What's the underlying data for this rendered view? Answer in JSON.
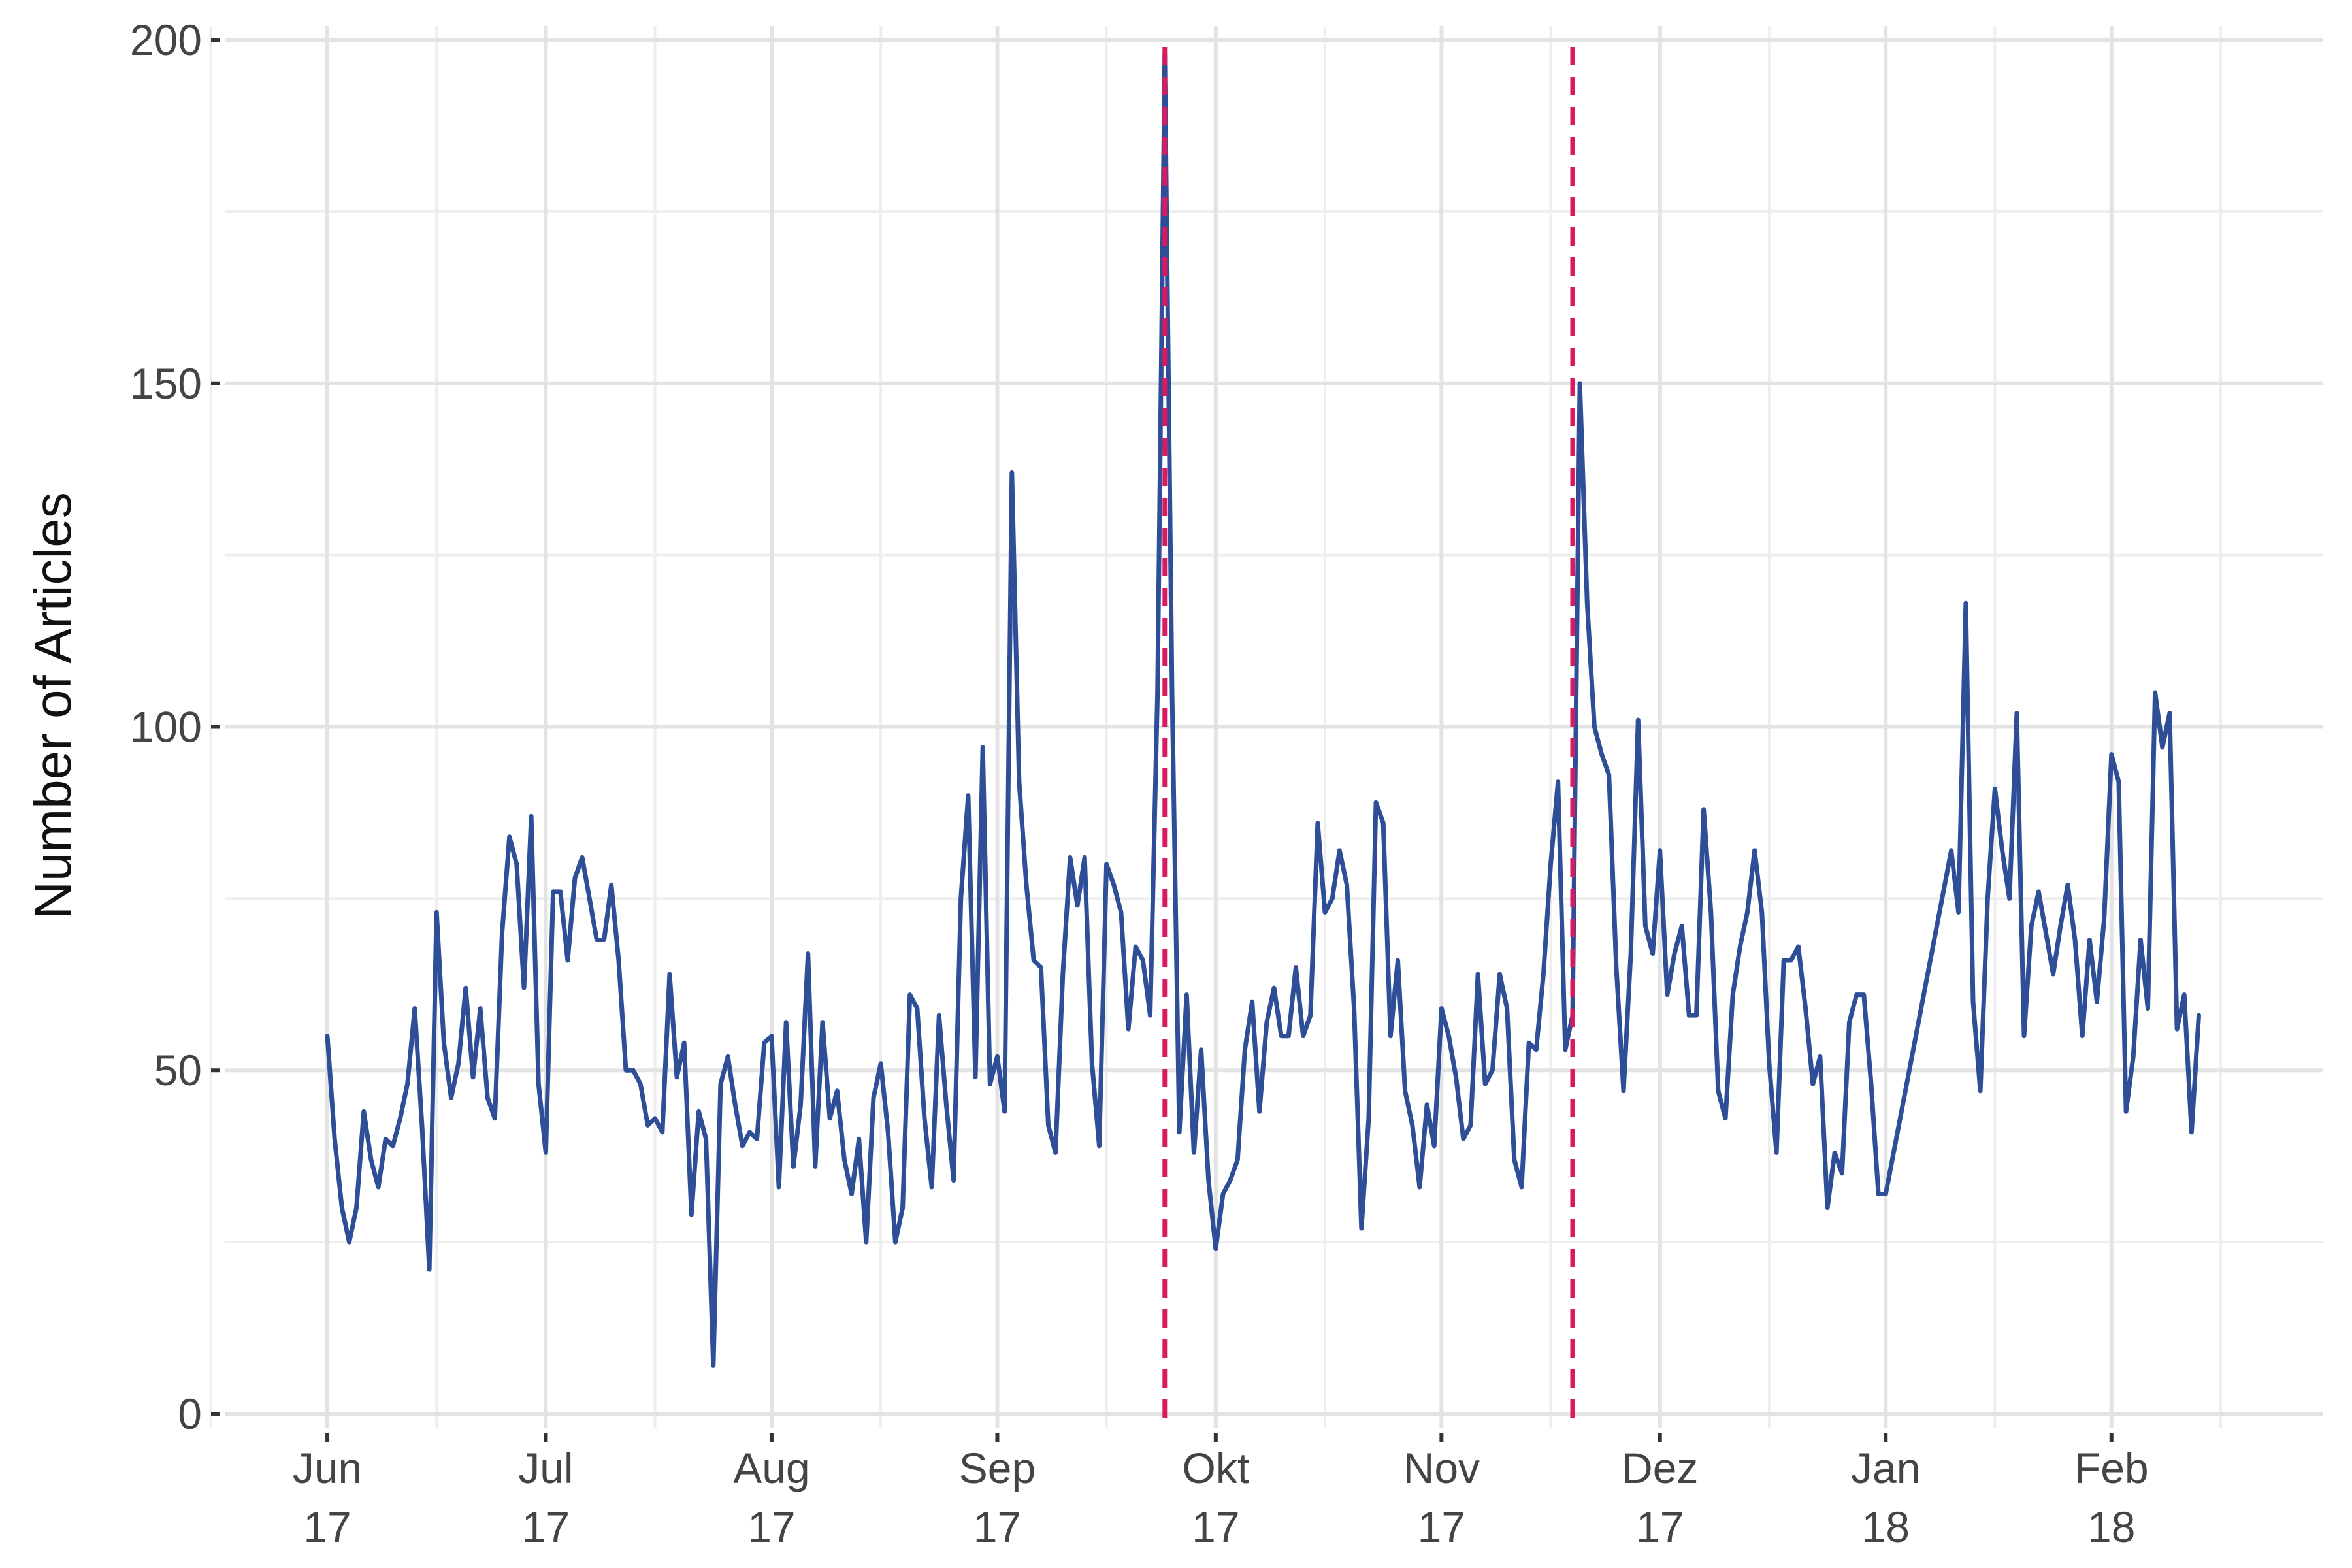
{
  "chart_data": {
    "type": "line",
    "title": "",
    "xlabel": "",
    "ylabel": "Number of Articles",
    "ylim": [
      -2,
      202
    ],
    "xlim": [
      "2017-05-18",
      "2018-03-02"
    ],
    "grid": true,
    "y_ticks": [
      0,
      50,
      100,
      150,
      200
    ],
    "y_minor_ticks": [
      25,
      75,
      125,
      175
    ],
    "x_ticks": [
      {
        "date": "2017-06-01",
        "month": "Jun",
        "year": "17"
      },
      {
        "date": "2017-07-01",
        "month": "Jul",
        "year": "17"
      },
      {
        "date": "2017-08-01",
        "month": "Aug",
        "year": "17"
      },
      {
        "date": "2017-09-01",
        "month": "Sep",
        "year": "17"
      },
      {
        "date": "2017-10-01",
        "month": "Okt",
        "year": "17"
      },
      {
        "date": "2017-11-01",
        "month": "Nov",
        "year": "17"
      },
      {
        "date": "2017-12-01",
        "month": "Dez",
        "year": "17"
      },
      {
        "date": "2018-01-01",
        "month": "Jan",
        "year": "18"
      },
      {
        "date": "2018-02-01",
        "month": "Feb",
        "year": "18"
      }
    ],
    "x_minor_ticks": [
      "2017-05-16",
      "2017-06-16",
      "2017-07-16",
      "2017-08-16",
      "2017-09-16",
      "2017-10-16",
      "2017-11-16",
      "2017-12-16",
      "2018-01-16",
      "2018-02-16"
    ],
    "series": [
      {
        "color": "#2e4f97",
        "x": [
          "2017-06-01",
          "2017-06-02",
          "2017-06-03",
          "2017-06-04",
          "2017-06-05",
          "2017-06-06",
          "2017-06-07",
          "2017-06-08",
          "2017-06-09",
          "2017-06-10",
          "2017-06-11",
          "2017-06-12",
          "2017-06-13",
          "2017-06-14",
          "2017-06-15",
          "2017-06-16",
          "2017-06-17",
          "2017-06-18",
          "2017-06-19",
          "2017-06-20",
          "2017-06-21",
          "2017-06-22",
          "2017-06-23",
          "2017-06-24",
          "2017-06-25",
          "2017-06-26",
          "2017-06-27",
          "2017-06-28",
          "2017-06-29",
          "2017-06-30",
          "2017-07-01",
          "2017-07-02",
          "2017-07-03",
          "2017-07-04",
          "2017-07-05",
          "2017-07-06",
          "2017-07-07",
          "2017-07-08",
          "2017-07-09",
          "2017-07-10",
          "2017-07-11",
          "2017-07-12",
          "2017-07-13",
          "2017-07-14",
          "2017-07-15",
          "2017-07-16",
          "2017-07-17",
          "2017-07-18",
          "2017-07-19",
          "2017-07-20",
          "2017-07-21",
          "2017-07-22",
          "2017-07-23",
          "2017-07-24",
          "2017-07-25",
          "2017-07-26",
          "2017-07-27",
          "2017-07-28",
          "2017-07-29",
          "2017-07-30",
          "2017-07-31",
          "2017-08-01",
          "2017-08-02",
          "2017-08-03",
          "2017-08-04",
          "2017-08-05",
          "2017-08-06",
          "2017-08-07",
          "2017-08-08",
          "2017-08-09",
          "2017-08-10",
          "2017-08-11",
          "2017-08-12",
          "2017-08-13",
          "2017-08-14",
          "2017-08-15",
          "2017-08-16",
          "2017-08-17",
          "2017-08-18",
          "2017-08-19",
          "2017-08-20",
          "2017-08-21",
          "2017-08-22",
          "2017-08-23",
          "2017-08-24",
          "2017-08-25",
          "2017-08-26",
          "2017-08-27",
          "2017-08-28",
          "2017-08-29",
          "2017-08-30",
          "2017-08-31",
          "2017-09-01",
          "2017-09-02",
          "2017-09-03",
          "2017-09-04",
          "2017-09-05",
          "2017-09-06",
          "2017-09-07",
          "2017-09-08",
          "2017-09-09",
          "2017-09-10",
          "2017-09-11",
          "2017-09-12",
          "2017-09-13",
          "2017-09-14",
          "2017-09-15",
          "2017-09-16",
          "2017-09-17",
          "2017-09-18",
          "2017-09-19",
          "2017-09-20",
          "2017-09-21",
          "2017-09-22",
          "2017-09-23",
          "2017-09-24",
          "2017-09-25",
          "2017-09-26",
          "2017-09-27",
          "2017-09-28",
          "2017-09-29",
          "2017-09-30",
          "2017-10-01",
          "2017-10-02",
          "2017-10-03",
          "2017-10-04",
          "2017-10-05",
          "2017-10-06",
          "2017-10-07",
          "2017-10-08",
          "2017-10-09",
          "2017-10-10",
          "2017-10-11",
          "2017-10-12",
          "2017-10-13",
          "2017-10-14",
          "2017-10-15",
          "2017-10-16",
          "2017-10-17",
          "2017-10-18",
          "2017-10-19",
          "2017-10-20",
          "2017-10-21",
          "2017-10-22",
          "2017-10-23",
          "2017-10-24",
          "2017-10-25",
          "2017-10-26",
          "2017-10-27",
          "2017-10-28",
          "2017-10-29",
          "2017-10-30",
          "2017-10-31",
          "2017-11-01",
          "2017-11-02",
          "2017-11-03",
          "2017-11-04",
          "2017-11-05",
          "2017-11-06",
          "2017-11-07",
          "2017-11-08",
          "2017-11-09",
          "2017-11-10",
          "2017-11-11",
          "2017-11-12",
          "2017-11-13",
          "2017-11-14",
          "2017-11-15",
          "2017-11-16",
          "2017-11-17",
          "2017-11-18",
          "2017-11-19",
          "2017-11-20",
          "2017-11-21",
          "2017-11-22",
          "2017-11-23",
          "2017-11-24",
          "2017-11-25",
          "2017-11-26",
          "2017-11-27",
          "2017-11-28",
          "2017-11-29",
          "2017-11-30",
          "2017-12-01",
          "2017-12-02",
          "2017-12-03",
          "2017-12-04",
          "2017-12-05",
          "2017-12-06",
          "2017-12-07",
          "2017-12-08",
          "2017-12-09",
          "2017-12-10",
          "2017-12-11",
          "2017-12-12",
          "2017-12-13",
          "2017-12-14",
          "2017-12-15",
          "2017-12-16",
          "2017-12-17",
          "2017-12-18",
          "2017-12-19",
          "2017-12-20",
          "2017-12-21",
          "2017-12-22",
          "2017-12-23",
          "2017-12-24",
          "2017-12-25",
          "2017-12-26",
          "2017-12-27",
          "2017-12-28",
          "2017-12-29",
          "2017-12-30",
          "2017-12-31",
          "2018-01-01",
          "2018-01-10",
          "2018-01-11",
          "2018-01-12",
          "2018-01-13",
          "2018-01-14",
          "2018-01-15",
          "2018-01-16",
          "2018-01-17",
          "2018-01-18",
          "2018-01-19",
          "2018-01-20",
          "2018-01-21",
          "2018-01-22",
          "2018-01-23",
          "2018-01-24",
          "2018-01-25",
          "2018-01-26",
          "2018-01-27",
          "2018-01-28",
          "2018-01-29",
          "2018-01-30",
          "2018-01-31",
          "2018-02-01",
          "2018-02-02",
          "2018-02-03",
          "2018-02-04",
          "2018-02-05",
          "2018-02-06",
          "2018-02-07",
          "2018-02-08",
          "2018-02-09",
          "2018-02-10",
          "2018-02-11",
          "2018-02-12",
          "2018-02-13"
        ],
        "values": [
          55,
          40,
          30,
          25,
          30,
          44,
          37,
          33,
          40,
          39,
          43,
          48,
          59,
          42,
          21,
          73,
          54,
          46,
          51,
          62,
          49,
          59,
          46,
          43,
          70,
          84,
          80,
          62,
          87,
          48,
          38,
          76,
          76,
          66,
          78,
          81,
          75,
          69,
          69,
          77,
          66,
          50,
          50,
          48,
          42,
          43,
          41,
          64,
          49,
          54,
          29,
          44,
          40,
          7,
          48,
          52,
          45,
          39,
          41,
          40,
          54,
          55,
          33,
          57,
          36,
          45,
          67,
          36,
          57,
          43,
          47,
          37,
          32,
          40,
          25,
          46,
          51,
          41,
          25,
          30,
          61,
          59,
          43,
          33,
          58,
          45,
          34,
          75,
          90,
          49,
          97,
          48,
          52,
          44,
          137,
          92,
          77,
          66,
          65,
          42,
          38,
          64,
          81,
          74,
          81,
          51,
          39,
          80,
          77,
          73,
          56,
          68,
          66,
          58,
          105,
          198,
          105,
          41,
          61,
          38,
          53,
          34,
          24,
          32,
          34,
          37,
          53,
          60,
          44,
          57,
          62,
          55,
          55,
          65,
          55,
          58,
          86,
          73,
          75,
          82,
          77,
          59,
          27,
          43,
          89,
          86,
          55,
          66,
          47,
          42,
          33,
          45,
          39,
          59,
          55,
          49,
          40,
          42,
          64,
          48,
          50,
          64,
          59,
          37,
          33,
          54,
          53,
          64,
          80,
          92,
          53,
          58,
          150,
          118,
          100,
          96,
          93,
          65,
          47,
          67,
          101,
          71,
          67,
          82,
          61,
          67,
          71,
          58,
          58,
          88,
          73,
          47,
          43,
          61,
          68,
          73,
          82,
          73,
          51,
          38,
          66,
          66,
          68,
          59,
          48,
          52,
          30,
          38,
          35,
          57,
          61,
          61,
          48,
          32,
          32,
          82,
          73,
          118,
          60,
          47,
          75,
          91,
          82,
          75,
          102,
          55,
          71,
          76,
          70,
          64,
          71,
          77,
          69,
          55,
          69,
          60,
          72,
          96,
          92,
          44,
          52,
          69,
          59,
          105,
          97,
          102,
          56,
          61,
          41,
          58
        ]
      }
    ],
    "vlines": [
      {
        "date": "2017-09-24",
        "color": "#d81b60"
      },
      {
        "date": "2017-11-19",
        "color": "#d81b60"
      }
    ]
  }
}
